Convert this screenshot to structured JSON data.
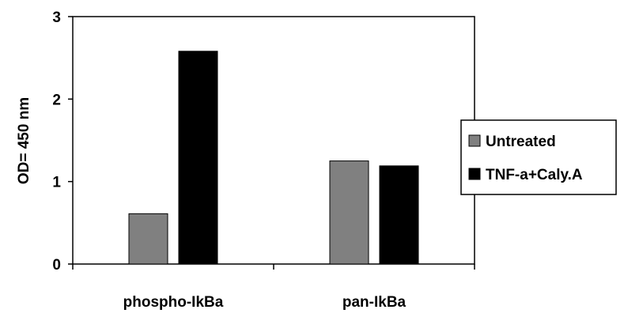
{
  "chart_data": {
    "type": "bar",
    "categories": [
      "phospho-IkBa",
      "pan-IkBa"
    ],
    "series": [
      {
        "name": "Untreated",
        "values": [
          0.61,
          1.25
        ],
        "color": "#808080"
      },
      {
        "name": "TNF-a+Caly.A",
        "values": [
          2.58,
          1.19
        ],
        "color": "#000000"
      }
    ],
    "title": "",
    "xlabel": "",
    "ylabel": "OD= 450 nm",
    "ylim": [
      0,
      3
    ],
    "yticks": [
      0,
      1,
      2,
      3
    ],
    "ytick_labels": [
      "0",
      "1",
      "2",
      "3"
    ],
    "grid": false,
    "legend_position": "right"
  }
}
